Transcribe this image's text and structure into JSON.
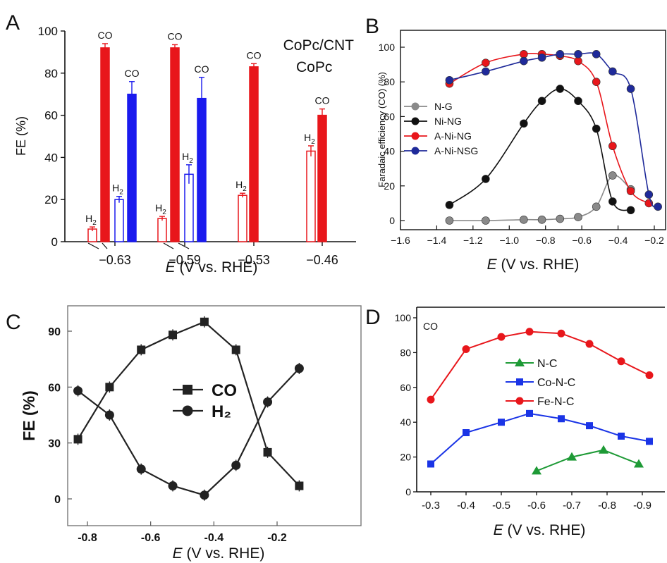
{
  "panels": {
    "A": "A",
    "B": "B",
    "C": "C",
    "D": "D"
  },
  "chart_data": [
    {
      "panel": "A",
      "type": "bar",
      "categories": [
        "−0.63",
        "−0.59",
        "−0.53",
        "−0.46"
      ],
      "xlabel_italic": "E",
      "xlabel_rest": " (V vs. RHE)",
      "ylabel": "FE (%)",
      "ylim": [
        0,
        100
      ],
      "yticks": [
        "0",
        "20",
        "40",
        "60",
        "80",
        "100"
      ],
      "legend": [
        "CoPc/CNT",
        "CoPc"
      ],
      "colors": {
        "CoPc/CNT": "#e8161b",
        "CoPc": "#1a1aee"
      },
      "groups": [
        {
          "category": "−0.63",
          "bars": [
            {
              "series": "CoPc/CNT",
              "product": "H2",
              "value": 6,
              "error": 1,
              "fill": false,
              "label": "H2"
            },
            {
              "series": "CoPc/CNT",
              "product": "CO",
              "value": 92,
              "error": 2,
              "fill": true,
              "label": "CO"
            },
            {
              "series": "CoPc",
              "product": "H2",
              "value": 20,
              "error": 1.5,
              "fill": false,
              "label": "H2"
            },
            {
              "series": "CoPc",
              "product": "CO",
              "value": 70,
              "error": 6,
              "fill": true,
              "label": "CO"
            }
          ]
        },
        {
          "category": "−0.59",
          "bars": [
            {
              "series": "CoPc/CNT",
              "product": "H2",
              "value": 11,
              "error": 1,
              "fill": false,
              "label": "H2"
            },
            {
              "series": "CoPc/CNT",
              "product": "CO",
              "value": 92,
              "error": 1.5,
              "fill": true,
              "label": "CO"
            },
            {
              "series": "CoPc",
              "product": "H2",
              "value": 32,
              "error": 4.5,
              "fill": false,
              "label": "H2"
            },
            {
              "series": "CoPc",
              "product": "CO",
              "value": 68,
              "error": 10,
              "fill": true,
              "label": "CO"
            }
          ]
        },
        {
          "category": "−0.53",
          "bars": [
            {
              "series": "CoPc/CNT",
              "product": "H2",
              "value": 22,
              "error": 1,
              "fill": false,
              "label": "H2"
            },
            {
              "series": "CoPc/CNT",
              "product": "CO",
              "value": 83,
              "error": 1.5,
              "fill": true,
              "label": "CO"
            }
          ]
        },
        {
          "category": "−0.46",
          "bars": [
            {
              "series": "CoPc/CNT",
              "product": "H2",
              "value": 43,
              "error": 2.5,
              "fill": false,
              "label": "H2"
            },
            {
              "series": "CoPc/CNT",
              "product": "CO",
              "value": 60,
              "error": 3,
              "fill": true,
              "label": "CO"
            }
          ]
        }
      ]
    },
    {
      "panel": "B",
      "type": "line",
      "xlabel_italic": "E",
      "xlabel_rest": " (V vs. RHE)",
      "ylabel": "Faradaic efficiency (CO) (%)",
      "xlim": [
        -1.6,
        -0.2
      ],
      "ylim": [
        -5,
        106
      ],
      "xticks": [
        "−1.6",
        "−1.4",
        "−1.2",
        "−1.0",
        "−0.8",
        "−0.6",
        "−0.4",
        "−0.2"
      ],
      "yticks": [
        "0",
        "20",
        "40",
        "60",
        "80",
        "100"
      ],
      "legend_position": "left",
      "series": [
        {
          "name": "N-G",
          "color": "#8a8a8a",
          "x": [
            -1.33,
            -1.13,
            -0.92,
            -0.82,
            -0.72,
            -0.62,
            -0.52,
            -0.43,
            -0.33
          ],
          "y": [
            0,
            0,
            0.5,
            0.5,
            1,
            2,
            8,
            26,
            18
          ]
        },
        {
          "name": "Ni-NG",
          "color": "#111111",
          "x": [
            -1.33,
            -1.13,
            -0.92,
            -0.82,
            -0.72,
            -0.62,
            -0.52,
            -0.43,
            -0.33
          ],
          "y": [
            9,
            24,
            56,
            69,
            76,
            69,
            53,
            11,
            6
          ]
        },
        {
          "name": "A-Ni-NG",
          "color": "#e8161b",
          "x": [
            -1.33,
            -1.13,
            -0.92,
            -0.82,
            -0.72,
            -0.62,
            -0.52,
            -0.43,
            -0.33,
            -0.23
          ],
          "y": [
            79,
            91,
            96,
            96,
            95,
            92,
            80,
            43,
            17,
            10
          ]
        },
        {
          "name": "A-Ni-NSG",
          "color": "#1f2a9a",
          "x": [
            -1.33,
            -1.13,
            -0.92,
            -0.82,
            -0.72,
            -0.62,
            -0.52,
            -0.43,
            -0.33,
            -0.23,
            -0.18
          ],
          "y": [
            81,
            86,
            92,
            94,
            96,
            96,
            96,
            86,
            76,
            15,
            8
          ]
        }
      ]
    },
    {
      "panel": "C",
      "type": "line",
      "xlabel_italic": "E",
      "xlabel_rest": " (V vs. RHE)",
      "ylabel": "FE (%)",
      "xlim": [
        -0.87,
        -0.1
      ],
      "ylim": [
        -8,
        105
      ],
      "xticks": [
        "-0.8",
        "-0.6",
        "-0.4",
        "-0.2"
      ],
      "yticks": [
        "0",
        "30",
        "60",
        "90"
      ],
      "series": [
        {
          "name": "CO",
          "marker": "square",
          "x": [
            -0.83,
            -0.73,
            -0.63,
            -0.53,
            -0.43,
            -0.33,
            -0.23,
            -0.13
          ],
          "y": [
            32,
            60,
            80,
            88,
            95,
            80,
            25,
            7
          ],
          "error": 3
        },
        {
          "name": "H₂",
          "marker": "circle",
          "x": [
            -0.83,
            -0.73,
            -0.63,
            -0.53,
            -0.43,
            -0.33,
            -0.23,
            -0.13
          ],
          "y": [
            58,
            45,
            16,
            7,
            2,
            18,
            52,
            70
          ],
          "error": 3
        }
      ]
    },
    {
      "panel": "D",
      "type": "line",
      "xlabel_italic": "E",
      "xlabel_rest": " (V vs. RHE)",
      "ylim": [
        0,
        100
      ],
      "xlim": [
        -0.3,
        -0.92
      ],
      "xticks": [
        "-0.3",
        "-0.4",
        "-0.5",
        "-0.6",
        "-0.7",
        "-0.8",
        "-0.9"
      ],
      "yticks": [
        "0",
        "20",
        "40",
        "60",
        "80",
        "100"
      ],
      "annotation": "CO",
      "series": [
        {
          "name": "N-C",
          "marker": "triangle",
          "color": "#1e9a36",
          "x": [
            -0.6,
            -0.7,
            -0.79,
            -0.89
          ],
          "y": [
            12,
            20,
            24,
            16
          ]
        },
        {
          "name": "Co-N-C",
          "marker": "square",
          "color": "#1a34e6",
          "x": [
            -0.3,
            -0.4,
            -0.5,
            -0.58,
            -0.67,
            -0.75,
            -0.84,
            -0.92
          ],
          "y": [
            16,
            34,
            40,
            45,
            42,
            38,
            32,
            29
          ]
        },
        {
          "name": "Fe-N-C",
          "marker": "circle",
          "color": "#e8161b",
          "x": [
            -0.3,
            -0.4,
            -0.5,
            -0.58,
            -0.67,
            -0.75,
            -0.84,
            -0.92
          ],
          "y": [
            53,
            82,
            89,
            92,
            91,
            85,
            75,
            67
          ]
        }
      ]
    }
  ]
}
